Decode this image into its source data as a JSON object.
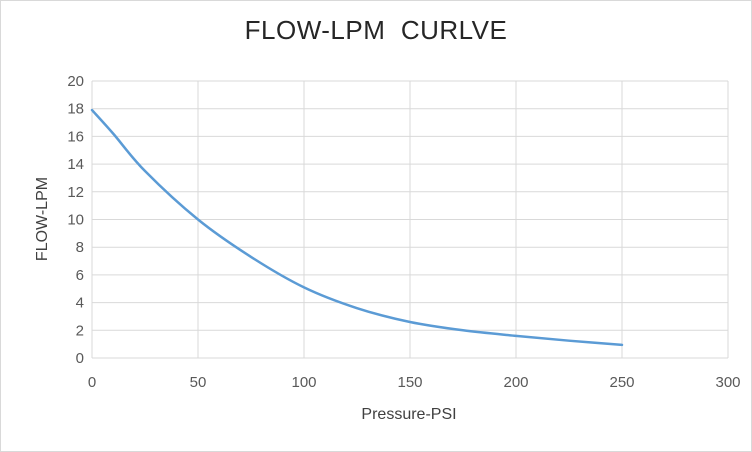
{
  "chart_data": {
    "type": "line",
    "title": "FLOW-LPM  CURLVE",
    "xlabel": "Pressure-PSI",
    "ylabel": "FLOW-LPM",
    "xlim": [
      0,
      300
    ],
    "ylim": [
      0,
      20
    ],
    "x_ticks": [
      "0",
      "50",
      "100",
      "150",
      "200",
      "250",
      "300"
    ],
    "y_ticks": [
      "0",
      "2",
      "4",
      "6",
      "8",
      "10",
      "12",
      "14",
      "16",
      "18",
      "20"
    ],
    "grid": true,
    "legend": "none",
    "series": [
      {
        "color": "#5b9bd5",
        "x": [
          0,
          10,
          25,
          50,
          75,
          100,
          125,
          150,
          175,
          200,
          225,
          250
        ],
        "y": [
          17.9,
          16.2,
          13.5,
          10.0,
          7.3,
          5.1,
          3.6,
          2.6,
          2.0,
          1.6,
          1.25,
          0.95
        ]
      }
    ]
  }
}
